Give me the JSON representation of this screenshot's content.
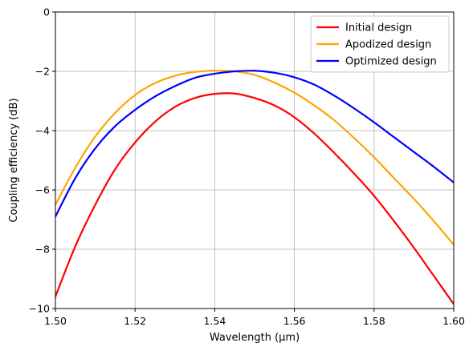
{
  "chart_data": {
    "type": "line",
    "title": "",
    "xlabel": "Wavelength (µm)",
    "ylabel": "Coupling efficiency (dB)",
    "xlim": [
      1.5,
      1.6
    ],
    "ylim": [
      -10,
      0
    ],
    "xticks": [
      1.5,
      1.52,
      1.54,
      1.56,
      1.58,
      1.6
    ],
    "xtick_labels": [
      "1.50",
      "1.52",
      "1.54",
      "1.56",
      "1.58",
      "1.60"
    ],
    "yticks": [
      -10,
      -8,
      -6,
      -4,
      -2,
      0
    ],
    "ytick_labels": [
      "−10",
      "−8",
      "−6",
      "−4",
      "−2",
      "0"
    ],
    "grid": true,
    "legend_position": "top-right",
    "x": [
      1.5,
      1.505,
      1.51,
      1.515,
      1.52,
      1.525,
      1.53,
      1.535,
      1.54,
      1.545,
      1.55,
      1.555,
      1.56,
      1.565,
      1.57,
      1.575,
      1.58,
      1.585,
      1.59,
      1.595,
      1.6
    ],
    "series": [
      {
        "name": "Initial design",
        "color": "#ff0000",
        "values": [
          -9.6,
          -7.9,
          -6.5,
          -5.3,
          -4.4,
          -3.7,
          -3.2,
          -2.9,
          -2.76,
          -2.75,
          -2.9,
          -3.15,
          -3.55,
          -4.1,
          -4.75,
          -5.45,
          -6.2,
          -7.05,
          -7.95,
          -8.9,
          -9.85
        ]
      },
      {
        "name": "Apodized design",
        "color": "#ffa500",
        "values": [
          -6.5,
          -5.25,
          -4.2,
          -3.4,
          -2.8,
          -2.4,
          -2.15,
          -2.02,
          -1.98,
          -2.0,
          -2.12,
          -2.38,
          -2.72,
          -3.15,
          -3.65,
          -4.25,
          -4.9,
          -5.6,
          -6.3,
          -7.05,
          -7.85
        ]
      },
      {
        "name": "Optimized design",
        "color": "#0000ff",
        "values": [
          -6.9,
          -5.6,
          -4.6,
          -3.85,
          -3.3,
          -2.85,
          -2.5,
          -2.22,
          -2.08,
          -2.0,
          -1.98,
          -2.05,
          -2.2,
          -2.45,
          -2.82,
          -3.25,
          -3.72,
          -4.22,
          -4.72,
          -5.22,
          -5.75
        ]
      }
    ]
  }
}
